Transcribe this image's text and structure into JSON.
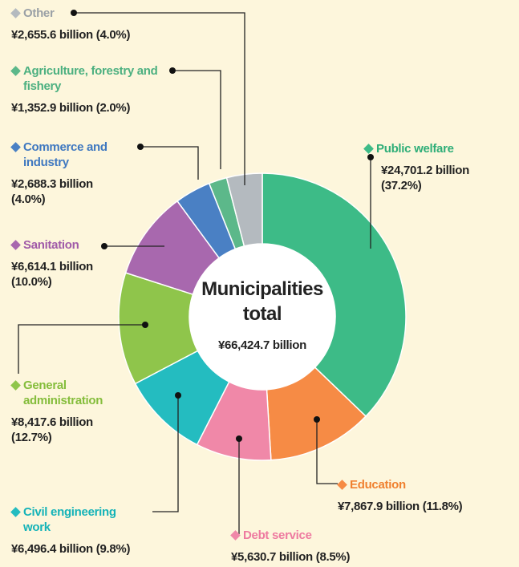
{
  "chart_data": {
    "type": "donut",
    "title": "Municipalities total",
    "total_label": "¥66,424.7 billion",
    "categories": [
      "Public welfare",
      "Education",
      "Debt service",
      "Civil engineering work",
      "General administration",
      "Sanitation",
      "Commerce and industry",
      "Agriculture, forestry and fishery",
      "Other"
    ],
    "values": [
      24701.2,
      7867.9,
      5630.7,
      6496.4,
      8417.6,
      6614.1,
      2688.3,
      1352.9,
      2655.6
    ],
    "value_labels": [
      "¥24,701.2 billion (37.2%)",
      "¥7,867.9 billion (11.8%)",
      "¥5,630.7 billion (8.5%)",
      "¥6,496.4 billion (9.8%)",
      "¥8,417.6 billion (12.7%)",
      "¥6,614.1 billion (10.0%)",
      "¥2,688.3 billion (4.0%)",
      "¥1,352.9 billion (2.0%)",
      "¥2,655.6 billion (4.0%)"
    ],
    "colors": [
      "#3dbb87",
      "#f68b45",
      "#f088a8",
      "#24bcc0",
      "#8fc54b",
      "#a868ae",
      "#4a80c4",
      "#5cb88a",
      "#b4babf"
    ],
    "label_colors": [
      "#2fae78",
      "#f0802f",
      "#ee7aa0",
      "#15b3b8",
      "#85bd3c",
      "#a05aa8",
      "#3f78c0",
      "#4cb080",
      "#9aa0a6"
    ]
  }
}
